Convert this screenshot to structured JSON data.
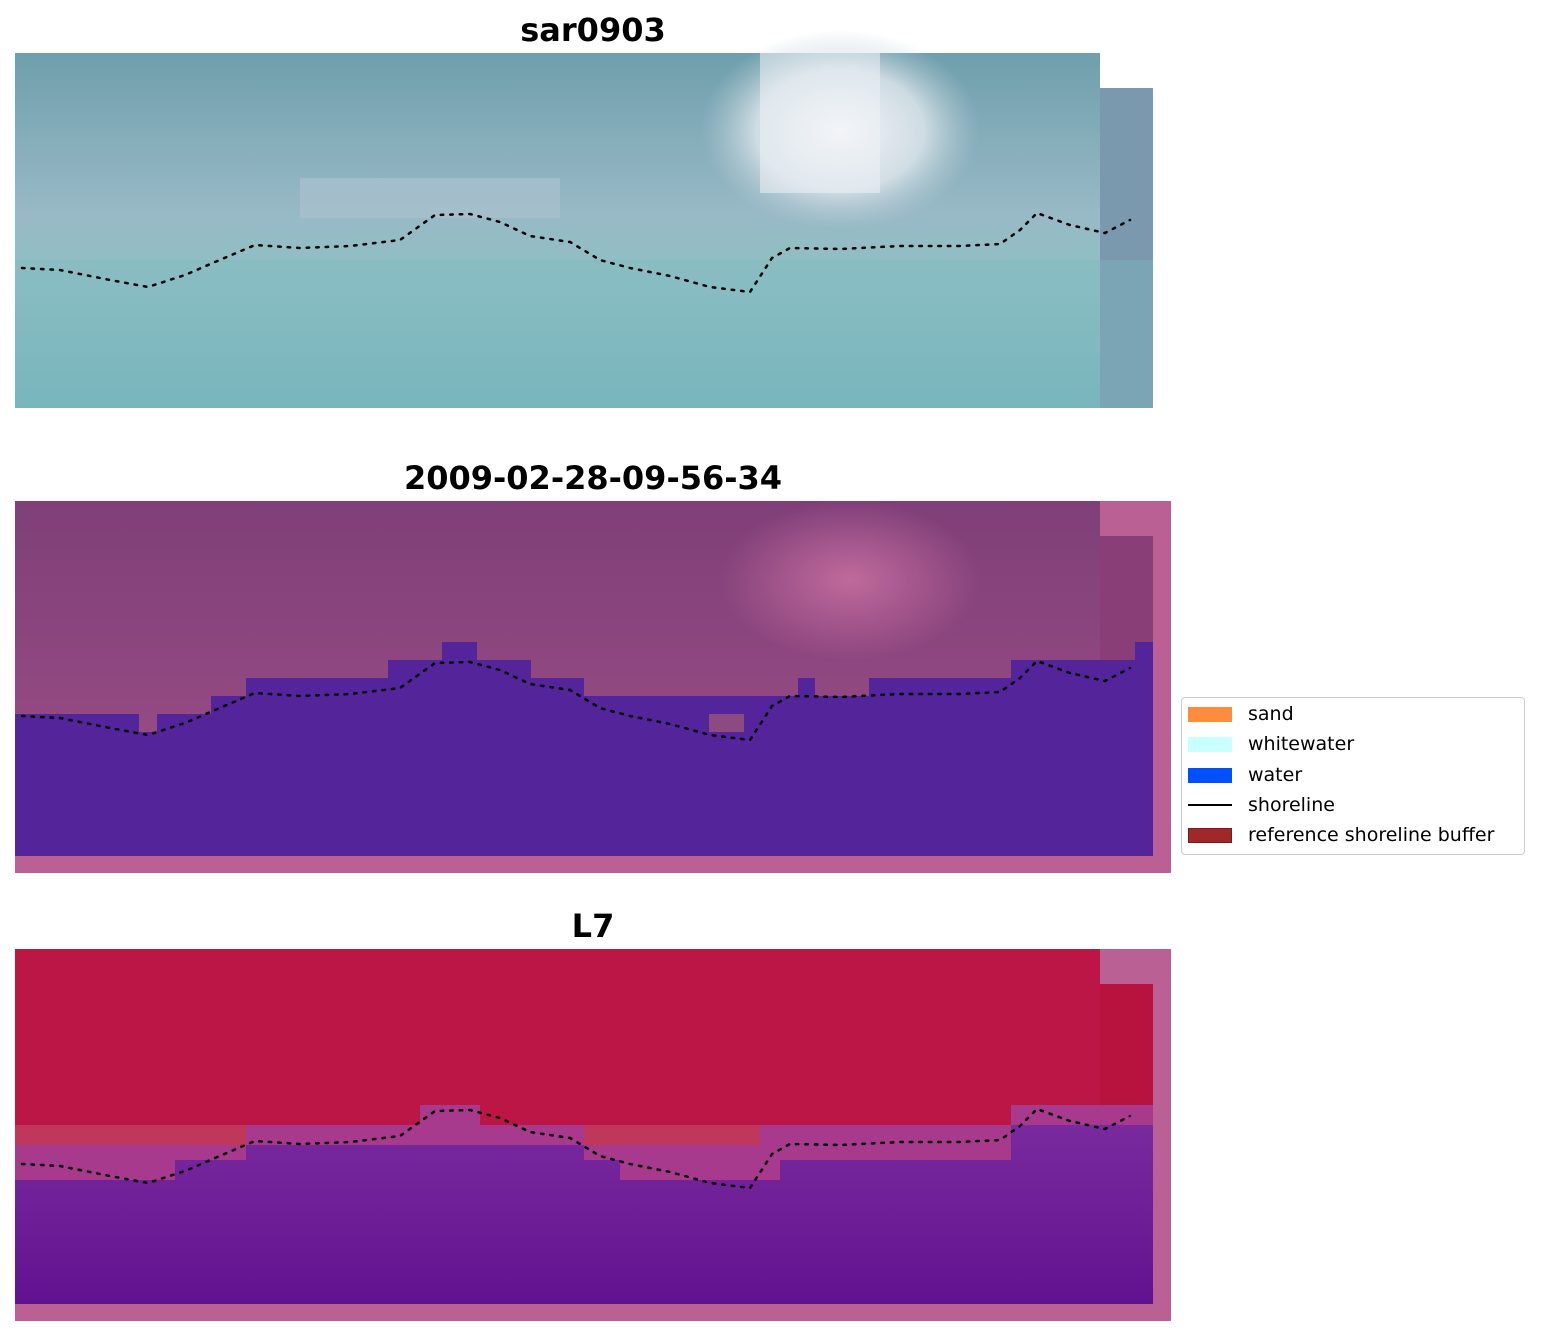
{
  "panels": [
    {
      "title": "sar0903"
    },
    {
      "title": "2009-02-28-09-56-34"
    },
    {
      "title": "L7"
    }
  ],
  "legend": {
    "items": [
      {
        "label": "sand",
        "color": "#ff8c3c",
        "kind": "patch"
      },
      {
        "label": "whitewater",
        "color": "#c8ffff",
        "kind": "patch"
      },
      {
        "label": "water",
        "color": "#0050ff",
        "kind": "patch"
      },
      {
        "label": "shoreline",
        "color": "#000000",
        "kind": "line"
      },
      {
        "label": "reference shoreline buffer",
        "color": "#a02828",
        "kind": "patch"
      }
    ]
  },
  "colors": {
    "sar_top": "#6f9fac",
    "sar_bottom": "#7db9c0",
    "sar_glare": "#f2f3f6",
    "class_land": "#8b4a80",
    "class_water": "#54249b",
    "class_buffer": "#ba6095",
    "l7_land": "#bb1645",
    "l7_water": "#6a1595"
  }
}
